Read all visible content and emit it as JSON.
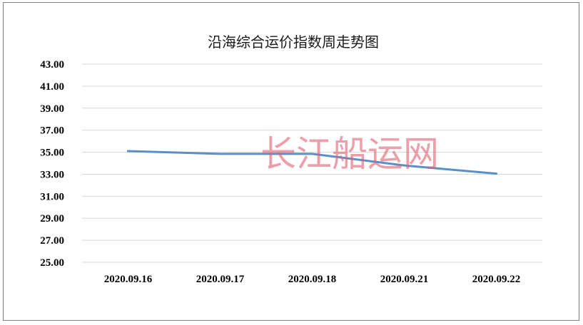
{
  "watermark": "长江船运网",
  "colors": {
    "line": "#5b8fc9",
    "grid": "#d9d9d9",
    "watermark": "#e06070"
  },
  "chart_data": {
    "type": "line",
    "title": "沿海综合运价指数周走势图",
    "categories": [
      "2020.09.16",
      "2020.09.17",
      "2020.09.18",
      "2020.09.21",
      "2020.09.22"
    ],
    "series": [
      {
        "values": [
          35.1,
          34.85,
          34.85,
          33.8,
          33.05
        ]
      }
    ],
    "ylim": [
      25,
      43
    ],
    "yticks": [
      "25.00",
      "27.00",
      "29.00",
      "31.00",
      "33.00",
      "35.00",
      "37.00",
      "39.00",
      "41.00",
      "43.00"
    ],
    "grid": true,
    "legend": "none"
  }
}
